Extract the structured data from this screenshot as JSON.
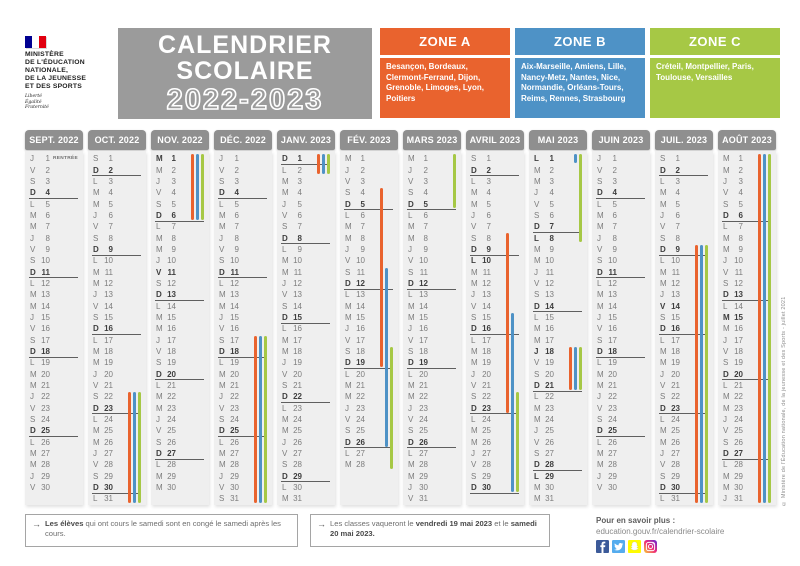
{
  "title": {
    "line1": "CALENDRIER",
    "line2": "SCOLAIRE",
    "years": "2022-2023"
  },
  "ministry": {
    "name": "MINISTÈRE\nDE L'ÉDUCATION\nNATIONALE,\nDE LA JEUNESSE\nET DES SPORTS",
    "motto": "Liberté\nÉgalité\nFraternité"
  },
  "zones": [
    {
      "id": "A",
      "label": "ZONE A",
      "color": "#E9632E",
      "cities": "Besançon, Bordeaux, Clermont-Ferrand, Dijon, Grenoble, Limoges, Lyon, Poitiers"
    },
    {
      "id": "B",
      "label": "ZONE B",
      "color": "#4E92C6",
      "cities": "Aix-Marseille, Amiens, Lille, Nancy-Metz, Nantes, Nice, Normandie, Orléans-Tours, Reims, Rennes, Strasbourg"
    },
    {
      "id": "C",
      "label": "ZONE C",
      "color": "#A6C845",
      "cities": "Créteil, Montpellier, Paris, Toulouse, Versailles"
    }
  ],
  "calendar": {
    "day_letters": [
      "L",
      "M",
      "M",
      "J",
      "V",
      "S",
      "D"
    ],
    "months": [
      {
        "label": "SEPT. 2022",
        "start": 3,
        "days": 30,
        "bold": [
          4,
          11,
          18,
          25
        ],
        "tags": {
          "1": "RENTRÉE"
        },
        "bars": []
      },
      {
        "label": "OCT. 2022",
        "start": 5,
        "days": 31,
        "bold": [
          2,
          9,
          16,
          23,
          30
        ],
        "bars": [
          {
            "zone": "A",
            "from": 22,
            "to": 31
          },
          {
            "zone": "B",
            "from": 22,
            "to": 31
          },
          {
            "zone": "C",
            "from": 22,
            "to": 31
          }
        ]
      },
      {
        "label": "NOV. 2022",
        "start": 1,
        "days": 30,
        "bold": [
          1,
          6,
          11,
          13,
          20,
          27
        ],
        "bars": [
          {
            "zone": "A",
            "from": 1,
            "to": 6
          },
          {
            "zone": "B",
            "from": 1,
            "to": 6
          },
          {
            "zone": "C",
            "from": 1,
            "to": 6
          }
        ]
      },
      {
        "label": "DÉC. 2022",
        "start": 3,
        "days": 31,
        "bold": [
          4,
          11,
          18,
          25
        ],
        "bars": [
          {
            "zone": "A",
            "from": 17,
            "to": 31
          },
          {
            "zone": "B",
            "from": 17,
            "to": 31
          },
          {
            "zone": "C",
            "from": 17,
            "to": 31
          }
        ]
      },
      {
        "label": "JANV. 2023",
        "start": 6,
        "days": 31,
        "bold": [
          1,
          8,
          15,
          22,
          29
        ],
        "bars": [
          {
            "zone": "A",
            "from": 1,
            "to": 2
          },
          {
            "zone": "B",
            "from": 1,
            "to": 2
          },
          {
            "zone": "C",
            "from": 1,
            "to": 2
          }
        ]
      },
      {
        "label": "FÉV. 2023",
        "start": 2,
        "days": 28,
        "bold": [
          5,
          12,
          19,
          26
        ],
        "bars": [
          {
            "zone": "A",
            "from": 4,
            "to": 19
          },
          {
            "zone": "B",
            "from": 11,
            "to": 26
          },
          {
            "zone": "C",
            "from": 18,
            "to": 28
          }
        ]
      },
      {
        "label": "MARS 2023",
        "start": 2,
        "days": 31,
        "bold": [
          5,
          12,
          19,
          26
        ],
        "bars": [
          {
            "zone": "C",
            "from": 1,
            "to": 5
          }
        ]
      },
      {
        "label": "AVRIL 2023",
        "start": 5,
        "days": 30,
        "bold": [
          2,
          9,
          10,
          16,
          23,
          30
        ],
        "bars": [
          {
            "zone": "A",
            "from": 8,
            "to": 23
          },
          {
            "zone": "B",
            "from": 15,
            "to": 30
          },
          {
            "zone": "C",
            "from": 22,
            "to": 30
          }
        ]
      },
      {
        "label": "MAI 2023",
        "start": 0,
        "days": 31,
        "bold": [
          1,
          7,
          8,
          14,
          18,
          21,
          28,
          29
        ],
        "bars": [
          {
            "zone": "B",
            "from": 1,
            "to": 1
          },
          {
            "zone": "C",
            "from": 1,
            "to": 8
          },
          {
            "zone": "A",
            "from": 18,
            "to": 21
          },
          {
            "zone": "B",
            "from": 18,
            "to": 21
          },
          {
            "zone": "C",
            "from": 18,
            "to": 21
          }
        ]
      },
      {
        "label": "JUIN 2023",
        "start": 3,
        "days": 30,
        "bold": [
          4,
          11,
          18,
          25
        ],
        "bars": []
      },
      {
        "label": "JUIL. 2023",
        "start": 5,
        "days": 31,
        "bold": [
          2,
          9,
          14,
          16,
          23,
          30
        ],
        "bars": [
          {
            "zone": "A",
            "from": 9,
            "to": 31
          },
          {
            "zone": "B",
            "from": 9,
            "to": 31
          },
          {
            "zone": "C",
            "from": 9,
            "to": 31
          }
        ]
      },
      {
        "label": "AOÛT 2023",
        "start": 1,
        "days": 31,
        "bold": [
          6,
          13,
          15,
          20,
          27
        ],
        "bars": [
          {
            "zone": "A",
            "from": 1,
            "to": 31
          },
          {
            "zone": "B",
            "from": 1,
            "to": 31
          },
          {
            "zone": "C",
            "from": 1,
            "to": 31
          }
        ]
      }
    ]
  },
  "notes": [
    {
      "parts": [
        {
          "t": "Les élèves",
          "b": true
        },
        {
          "t": " qui ont cours le samedi sont en congé le samedi après les cours.",
          "b": false
        }
      ]
    },
    {
      "parts": [
        {
          "t": "Les classes vaqueront le ",
          "b": false
        },
        {
          "t": "vendredi 19 mai 2023",
          "b": true
        },
        {
          "t": " et le ",
          "b": false
        },
        {
          "t": "samedi 20 mai 2023.",
          "b": true
        }
      ]
    }
  ],
  "footer": {
    "more_label": "Pour en savoir plus :",
    "more_url": "education.gouv.fr/calendrier-scolaire",
    "social": [
      "facebook",
      "twitter",
      "snapchat",
      "instagram"
    ],
    "social_colors": {
      "facebook": "#3C5A99",
      "twitter": "#55ACEE",
      "snapchat": "#FFFC00"
    }
  },
  "copyright": "© Ministère de l'Éducation nationale, de la jeunesse et des Sports - juillet 2021"
}
